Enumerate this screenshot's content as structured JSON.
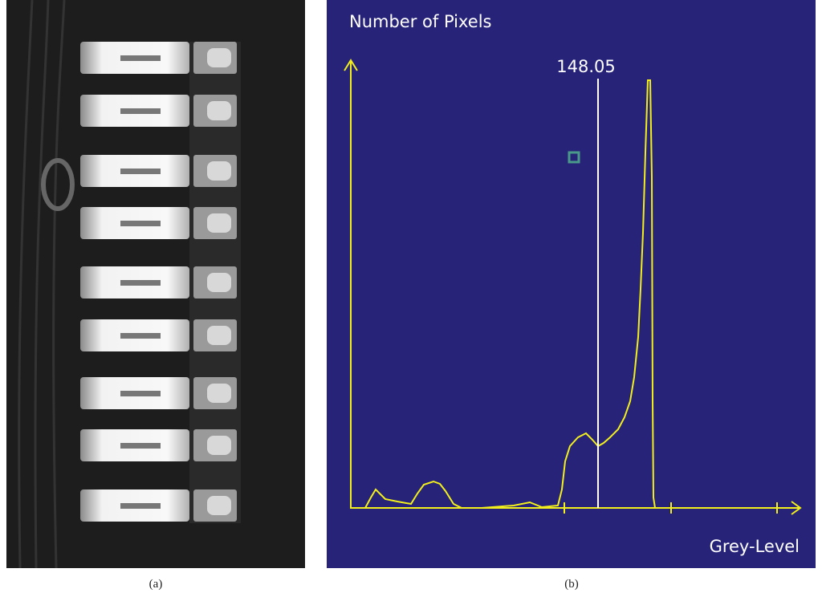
{
  "panel_a": {
    "caption": "(a)"
  },
  "panel_b": {
    "caption": "(b)",
    "y_axis_label": "Number of Pixels",
    "x_axis_label": "Grey-Level",
    "threshold_label": "148.05"
  }
}
